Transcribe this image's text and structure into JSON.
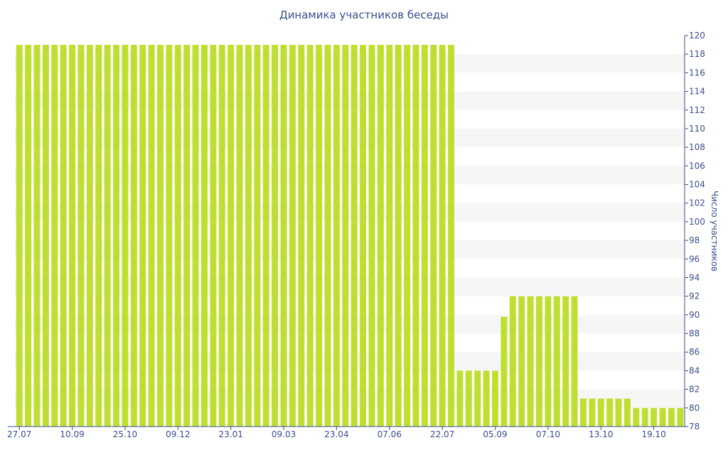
{
  "chart_data": {
    "type": "bar",
    "title": "Динамика участников беседы",
    "xlabel": "",
    "ylabel": "Число участников",
    "ylim": [
      78,
      120
    ],
    "y_ticks": [
      78,
      80,
      82,
      84,
      86,
      88,
      90,
      92,
      94,
      96,
      98,
      100,
      102,
      104,
      106,
      108,
      110,
      112,
      114,
      116,
      118,
      120
    ],
    "x_tick_labels": [
      "27.07",
      "10.09",
      "25.10",
      "09.12",
      "23.01",
      "09.03",
      "23.04",
      "07.06",
      "22.07",
      "05.09",
      "07.10",
      "13.10",
      "19.10"
    ],
    "x_tick_positions": [
      0,
      6,
      12,
      18,
      24,
      30,
      36,
      42,
      48,
      54,
      60,
      66,
      72
    ],
    "y_axis_side": "right",
    "grid": "alternating horizontal bands",
    "bar_color": "#bedf2f",
    "values": [
      119,
      119,
      119,
      119,
      119,
      119,
      119,
      119,
      119,
      119,
      119,
      119,
      119,
      119,
      119,
      119,
      119,
      119,
      119,
      119,
      119,
      119,
      119,
      119,
      119,
      119,
      119,
      119,
      119,
      119,
      119,
      119,
      119,
      119,
      119,
      119,
      119,
      119,
      119,
      119,
      119,
      119,
      119,
      119,
      119,
      119,
      119,
      119,
      119,
      119,
      84,
      84,
      84,
      84,
      84,
      89.8,
      92,
      92,
      92,
      92,
      92,
      92,
      92,
      92,
      81,
      81,
      81,
      81,
      81,
      81,
      80,
      80,
      80,
      80,
      80,
      80
    ]
  }
}
